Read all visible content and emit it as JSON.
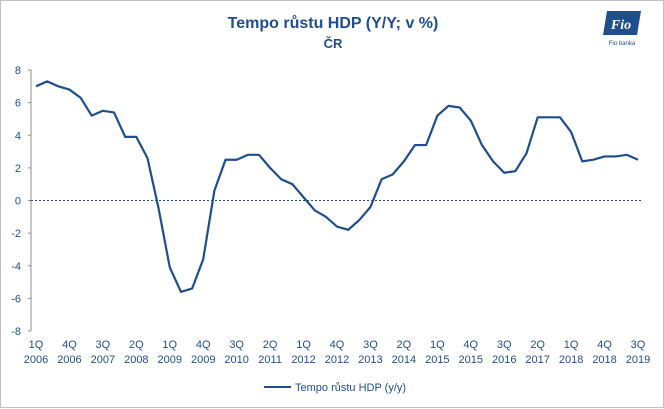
{
  "logo": {
    "text": "Fio",
    "subtitle": "Fio banka"
  },
  "chart_data": {
    "type": "line",
    "title": "Tempo růstu HDP (Y/Y; v %)",
    "subtitle": "ČR",
    "ylim": [
      -8,
      8
    ],
    "yticks": [
      8,
      6,
      4,
      2,
      0,
      -2,
      -4,
      -6,
      -8
    ],
    "xtick_labels": [
      {
        "q": "1Q",
        "y": "2006",
        "i": 0
      },
      {
        "q": "4Q",
        "y": "2006",
        "i": 3
      },
      {
        "q": "3Q",
        "y": "2007",
        "i": 6
      },
      {
        "q": "2Q",
        "y": "2008",
        "i": 9
      },
      {
        "q": "1Q",
        "y": "2009",
        "i": 12
      },
      {
        "q": "4Q",
        "y": "2009",
        "i": 15
      },
      {
        "q": "3Q",
        "y": "2010",
        "i": 18
      },
      {
        "q": "2Q",
        "y": "2011",
        "i": 21
      },
      {
        "q": "1Q",
        "y": "2012",
        "i": 24
      },
      {
        "q": "4Q",
        "y": "2012",
        "i": 27
      },
      {
        "q": "3Q",
        "y": "2013",
        "i": 30
      },
      {
        "q": "2Q",
        "y": "2014",
        "i": 33
      },
      {
        "q": "1Q",
        "y": "2015",
        "i": 36
      },
      {
        "q": "4Q",
        "y": "2015",
        "i": 39
      },
      {
        "q": "3Q",
        "y": "2016",
        "i": 42
      },
      {
        "q": "2Q",
        "y": "2017",
        "i": 45
      },
      {
        "q": "1Q",
        "y": "2018",
        "i": 48
      },
      {
        "q": "4Q",
        "y": "2018",
        "i": 51
      },
      {
        "q": "3Q",
        "y": "2019",
        "i": 54
      }
    ],
    "series": [
      {
        "name": "Tempo růstu HDP (y/y)",
        "color": "#1f4e8c",
        "values": [
          7.0,
          7.3,
          7.0,
          6.8,
          6.3,
          5.2,
          5.5,
          5.4,
          3.9,
          3.9,
          2.6,
          -0.5,
          -4.1,
          -5.6,
          -5.4,
          -3.6,
          0.6,
          2.5,
          2.5,
          2.8,
          2.8,
          2.0,
          1.3,
          1.0,
          0.2,
          -0.6,
          -1.0,
          -1.6,
          -1.8,
          -1.2,
          -0.4,
          1.3,
          1.6,
          2.4,
          3.4,
          3.4,
          5.2,
          5.8,
          5.7,
          4.9,
          3.4,
          2.4,
          1.7,
          1.8,
          2.9,
          5.1,
          5.1,
          5.1,
          4.2,
          2.4,
          2.5,
          2.7,
          2.7,
          2.8,
          2.5
        ]
      }
    ],
    "zero_line": true,
    "grid": false,
    "legend_position": "bottom"
  }
}
